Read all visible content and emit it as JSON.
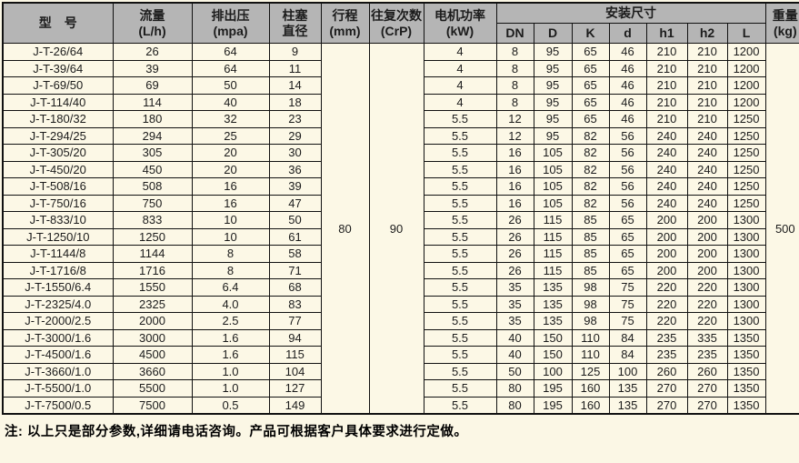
{
  "table": {
    "headers": {
      "model": "型　号",
      "flow_l1": "流量",
      "flow_l2": "(L/h)",
      "pressure_l1": "排出压",
      "pressure_l2": "(mpa)",
      "plunger_l1": "柱塞",
      "plunger_l2": "直径",
      "stroke_l1": "行程",
      "stroke_l2": "(mm)",
      "recip_l1": "往复次数",
      "recip_l2": "(CrP)",
      "power_l1": "电机功率",
      "power_l2": "(kW)",
      "install": "安装尺寸",
      "install_sub": [
        "DN",
        "D",
        "K",
        "d",
        "h1",
        "h2",
        "L"
      ],
      "weight_l1": "重量",
      "weight_l2": "(kg)"
    },
    "merged": {
      "stroke": "80",
      "recip": "90",
      "weight": "500"
    },
    "rows": [
      [
        "J-T-26/64",
        "26",
        "64",
        "9",
        "4",
        "8",
        "95",
        "65",
        "46",
        "210",
        "210",
        "1200"
      ],
      [
        "J-T-39/64",
        "39",
        "64",
        "11",
        "4",
        "8",
        "95",
        "65",
        "46",
        "210",
        "210",
        "1200"
      ],
      [
        "J-T-69/50",
        "69",
        "50",
        "14",
        "4",
        "8",
        "95",
        "65",
        "46",
        "210",
        "210",
        "1200"
      ],
      [
        "J-T-114/40",
        "114",
        "40",
        "18",
        "4",
        "8",
        "95",
        "65",
        "46",
        "210",
        "210",
        "1200"
      ],
      [
        "J-T-180/32",
        "180",
        "32",
        "23",
        "5.5",
        "12",
        "95",
        "65",
        "46",
        "210",
        "210",
        "1250"
      ],
      [
        "J-T-294/25",
        "294",
        "25",
        "29",
        "5.5",
        "12",
        "95",
        "82",
        "56",
        "240",
        "240",
        "1250"
      ],
      [
        "J-T-305/20",
        "305",
        "20",
        "30",
        "5.5",
        "16",
        "105",
        "82",
        "56",
        "240",
        "240",
        "1250"
      ],
      [
        "J-T-450/20",
        "450",
        "20",
        "36",
        "5.5",
        "16",
        "105",
        "82",
        "56",
        "240",
        "240",
        "1250"
      ],
      [
        "J-T-508/16",
        "508",
        "16",
        "39",
        "5.5",
        "16",
        "105",
        "82",
        "56",
        "240",
        "240",
        "1250"
      ],
      [
        "J-T-750/16",
        "750",
        "16",
        "47",
        "5.5",
        "16",
        "105",
        "82",
        "56",
        "240",
        "240",
        "1250"
      ],
      [
        "J-T-833/10",
        "833",
        "10",
        "50",
        "5.5",
        "26",
        "115",
        "85",
        "65",
        "200",
        "200",
        "1300"
      ],
      [
        "J-T-1250/10",
        "1250",
        "10",
        "61",
        "5.5",
        "26",
        "115",
        "85",
        "65",
        "200",
        "200",
        "1300"
      ],
      [
        "J-T-1144/8",
        "1144",
        "8",
        "58",
        "5.5",
        "26",
        "115",
        "85",
        "65",
        "200",
        "200",
        "1300"
      ],
      [
        "J-T-1716/8",
        "1716",
        "8",
        "71",
        "5.5",
        "26",
        "115",
        "85",
        "65",
        "200",
        "200",
        "1300"
      ],
      [
        "J-T-1550/6.4",
        "1550",
        "6.4",
        "68",
        "5.5",
        "35",
        "135",
        "98",
        "75",
        "220",
        "220",
        "1300"
      ],
      [
        "J-T-2325/4.0",
        "2325",
        "4.0",
        "83",
        "5.5",
        "35",
        "135",
        "98",
        "75",
        "220",
        "220",
        "1300"
      ],
      [
        "J-T-2000/2.5",
        "2000",
        "2.5",
        "77",
        "5.5",
        "35",
        "135",
        "98",
        "75",
        "220",
        "220",
        "1300"
      ],
      [
        "J-T-3000/1.6",
        "3000",
        "1.6",
        "94",
        "5.5",
        "40",
        "150",
        "110",
        "84",
        "235",
        "335",
        "1350"
      ],
      [
        "J-T-4500/1.6",
        "4500",
        "1.6",
        "115",
        "5.5",
        "40",
        "150",
        "110",
        "84",
        "235",
        "235",
        "1350"
      ],
      [
        "J-T-3660/1.0",
        "3660",
        "1.0",
        "104",
        "5.5",
        "50",
        "100",
        "125",
        "100",
        "260",
        "260",
        "1350"
      ],
      [
        "J-T-5500/1.0",
        "5500",
        "1.0",
        "127",
        "5.5",
        "80",
        "195",
        "160",
        "135",
        "270",
        "270",
        "1350"
      ],
      [
        "J-T-7500/0.5",
        "7500",
        "0.5",
        "149",
        "5.5",
        "80",
        "195",
        "160",
        "135",
        "270",
        "270",
        "1350"
      ]
    ],
    "column_names": [
      "model",
      "flow",
      "pressure",
      "diameter",
      "power",
      "dn",
      "d-big",
      "k",
      "d-small",
      "h1",
      "h2",
      "l"
    ]
  },
  "note": "注: 以上只是部分参数,详细请电话咨询。产品可根据客户具体要求进行定做。",
  "colors": {
    "header_bg": "#b5b5b5",
    "body_bg": "#fcf8e6",
    "border": "#111111"
  }
}
